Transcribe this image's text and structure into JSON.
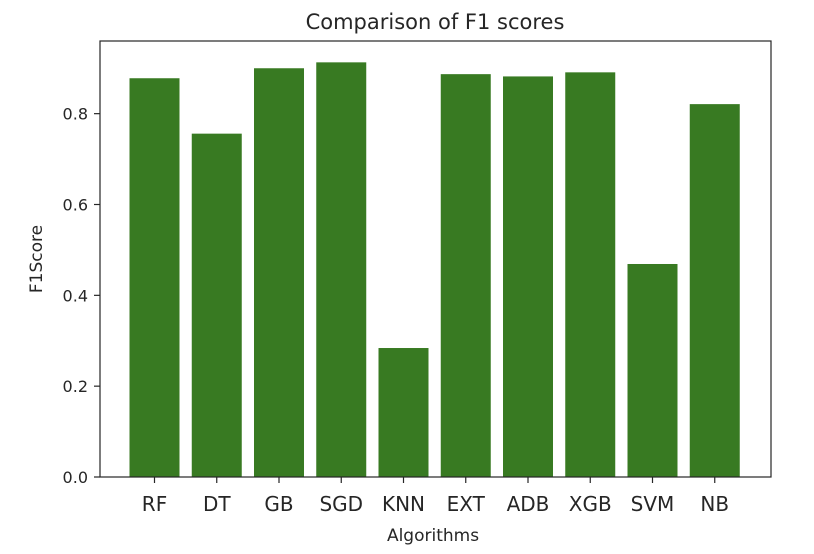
{
  "chart_data": {
    "type": "bar",
    "title": "Comparison of F1 scores",
    "xlabel": "Algorithms",
    "ylabel": "F1Score",
    "categories": [
      "RF",
      "DT",
      "GB",
      "SGD",
      "KNN",
      "EXT",
      "ADB",
      "XGB",
      "SVM",
      "NB"
    ],
    "values": [
      0.878,
      0.756,
      0.9,
      0.913,
      0.284,
      0.887,
      0.882,
      0.891,
      0.469,
      0.821
    ],
    "ylim": [
      0,
      0.96
    ],
    "yticks": [
      "0.0",
      "0.2",
      "0.4",
      "0.6",
      "0.8"
    ],
    "bar_color": "#387a22",
    "grid": false,
    "legend": "none"
  }
}
